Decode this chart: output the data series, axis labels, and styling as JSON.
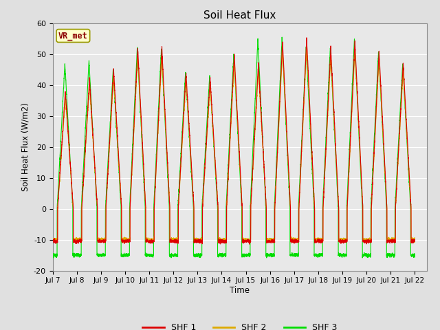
{
  "title": "Soil Heat Flux",
  "ylabel": "Soil Heat Flux (W/m2)",
  "xlabel": "Time",
  "ylim": [
    -20,
    60
  ],
  "xlim": [
    0,
    15.5
  ],
  "fig_bg_color": "#e0e0e0",
  "plot_bg_color": "#e8e8e8",
  "annotation_text": "VR_met",
  "annotation_bg": "#ffffcc",
  "annotation_border": "#999900",
  "annotation_text_color": "#8B0000",
  "shf1_color": "#dd0000",
  "shf2_color": "#ddaa00",
  "shf3_color": "#00dd00",
  "xtick_labels": [
    "Jul 7",
    "Jul 8",
    "Jul 9",
    "Jul 10",
    "Jul 11",
    "Jul 12",
    "Jul 13",
    "Jul 14",
    "Jul 15",
    "Jul 16",
    "Jul 17",
    "Jul 18",
    "Jul 19",
    "Jul 20",
    "Jul 21",
    "Jul 22"
  ],
  "ytick_labels": [
    "-20",
    "-10",
    "0",
    "10",
    "20",
    "30",
    "40",
    "50",
    "60"
  ],
  "ytick_vals": [
    -20,
    -10,
    0,
    10,
    20,
    30,
    40,
    50,
    60
  ],
  "grid_color": "#ffffff",
  "num_days": 15,
  "points_per_day": 288,
  "day_peaks": [
    38,
    42,
    45,
    52,
    52,
    44,
    42,
    50,
    47,
    54,
    55,
    52,
    54,
    51,
    47
  ],
  "day_peaks3": [
    47,
    48,
    45,
    52,
    52,
    44,
    43,
    50,
    55,
    55,
    52,
    52,
    55,
    51,
    47
  ]
}
